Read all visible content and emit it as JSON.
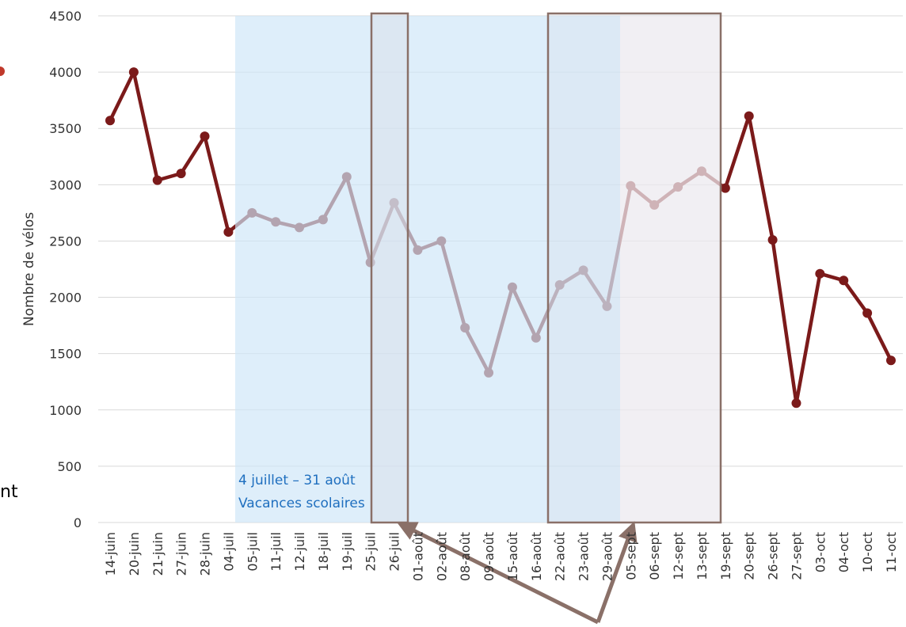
{
  "chart_data": {
    "type": "line",
    "y_label": "Nombre de vélos",
    "annotation": [
      "4 juillet – 31 août",
      "Vacances scolaires"
    ],
    "fragment": "nt",
    "categories": [
      "14-juin",
      "20-juin",
      "21-juin",
      "27-juin",
      "28-juin",
      "04-juil",
      "05-juil",
      "11-juil",
      "12-juil",
      "18-juil",
      "19-juil",
      "25-juil",
      "26-juil",
      "01-août",
      "02-août",
      "08-août",
      "09-août",
      "15-août",
      "16-août",
      "22-août",
      "23-août",
      "29-août",
      "05-sept",
      "06-sept",
      "12-sept",
      "13-sept",
      "19-sept",
      "20-sept",
      "26-sept",
      "27-sept",
      "03-oct",
      "04-oct",
      "10-oct",
      "11-oct"
    ],
    "series": [
      {
        "color": "#7b1a1a",
        "values": [
          3570,
          4000,
          3040,
          3100,
          3430,
          2580,
          2750,
          2670,
          2620,
          2690,
          3070,
          2310,
          2840,
          2420,
          2500,
          1730,
          1330,
          2090,
          1640,
          2110,
          2240,
          1920,
          2990,
          2820,
          2980,
          3120,
          2970,
          3610,
          2510,
          1060,
          2210,
          2150,
          1860,
          1440
        ]
      }
    ],
    "ylim": [
      0,
      4500
    ],
    "yticks": [
      0,
      500,
      1000,
      1500,
      2000,
      2500,
      3000,
      3500,
      4000,
      4500
    ],
    "grid": true
  }
}
